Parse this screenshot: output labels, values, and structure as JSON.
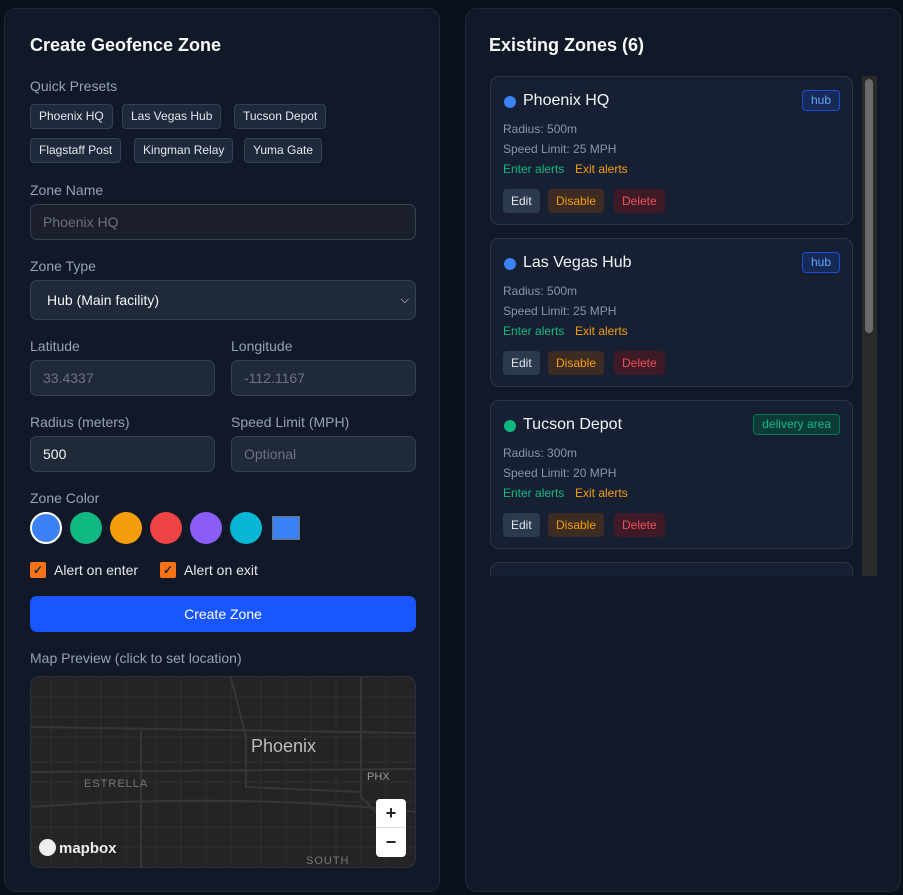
{
  "create": {
    "title": "Create Geofence Zone",
    "presets_label": "Quick Presets",
    "presets": [
      "Phoenix HQ",
      "Las Vegas Hub",
      "Tucson Depot",
      "Flagstaff Post",
      "Kingman Relay",
      "Yuma Gate"
    ],
    "zone_name_label": "Zone Name",
    "zone_name_placeholder": "Phoenix HQ",
    "zone_type_label": "Zone Type",
    "zone_type_value": "Hub (Main facility)",
    "latitude_label": "Latitude",
    "latitude_placeholder": "33.4337",
    "longitude_label": "Longitude",
    "longitude_placeholder": "-112.1167",
    "radius_label": "Radius (meters)",
    "radius_value": "500",
    "speed_label": "Speed Limit (MPH)",
    "speed_placeholder": "Optional",
    "color_label": "Zone Color",
    "colors": [
      "#3b82f6",
      "#10b981",
      "#f59e0b",
      "#ef4444",
      "#8b5cf6",
      "#06b6d4"
    ],
    "selected_color": "#3b82f6",
    "alert_enter_label": "Alert on enter",
    "alert_enter": true,
    "alert_exit_label": "Alert on exit",
    "alert_exit": true,
    "create_button": "Create Zone",
    "map_label": "Map Preview (click to set location)",
    "map": {
      "city": "Phoenix",
      "labels": [
        "ESTRELLA",
        "PHX",
        "SOUTH"
      ],
      "logo": "mapbox",
      "zoom_in": "+",
      "zoom_out": "−"
    }
  },
  "zones": {
    "title": "Existing Zones (6)",
    "items": [
      {
        "name": "Phoenix HQ",
        "color": "#3b82f6",
        "type": "hub",
        "radius": "Radius: 500m",
        "speed": "Speed Limit: 25 MPH",
        "enter": "Enter alerts",
        "exit": "Exit alerts"
      },
      {
        "name": "Las Vegas Hub",
        "color": "#3b82f6",
        "type": "hub",
        "radius": "Radius: 500m",
        "speed": "Speed Limit: 25 MPH",
        "enter": "Enter alerts",
        "exit": "Exit alerts"
      },
      {
        "name": "Tucson Depot",
        "color": "#10b981",
        "type": "delivery area",
        "radius": "Radius: 300m",
        "speed": "Speed Limit: 20 MPH",
        "enter": "Enter alerts",
        "exit": "Exit alerts"
      }
    ],
    "edit": "Edit",
    "disable": "Disable",
    "delete": "Delete"
  }
}
